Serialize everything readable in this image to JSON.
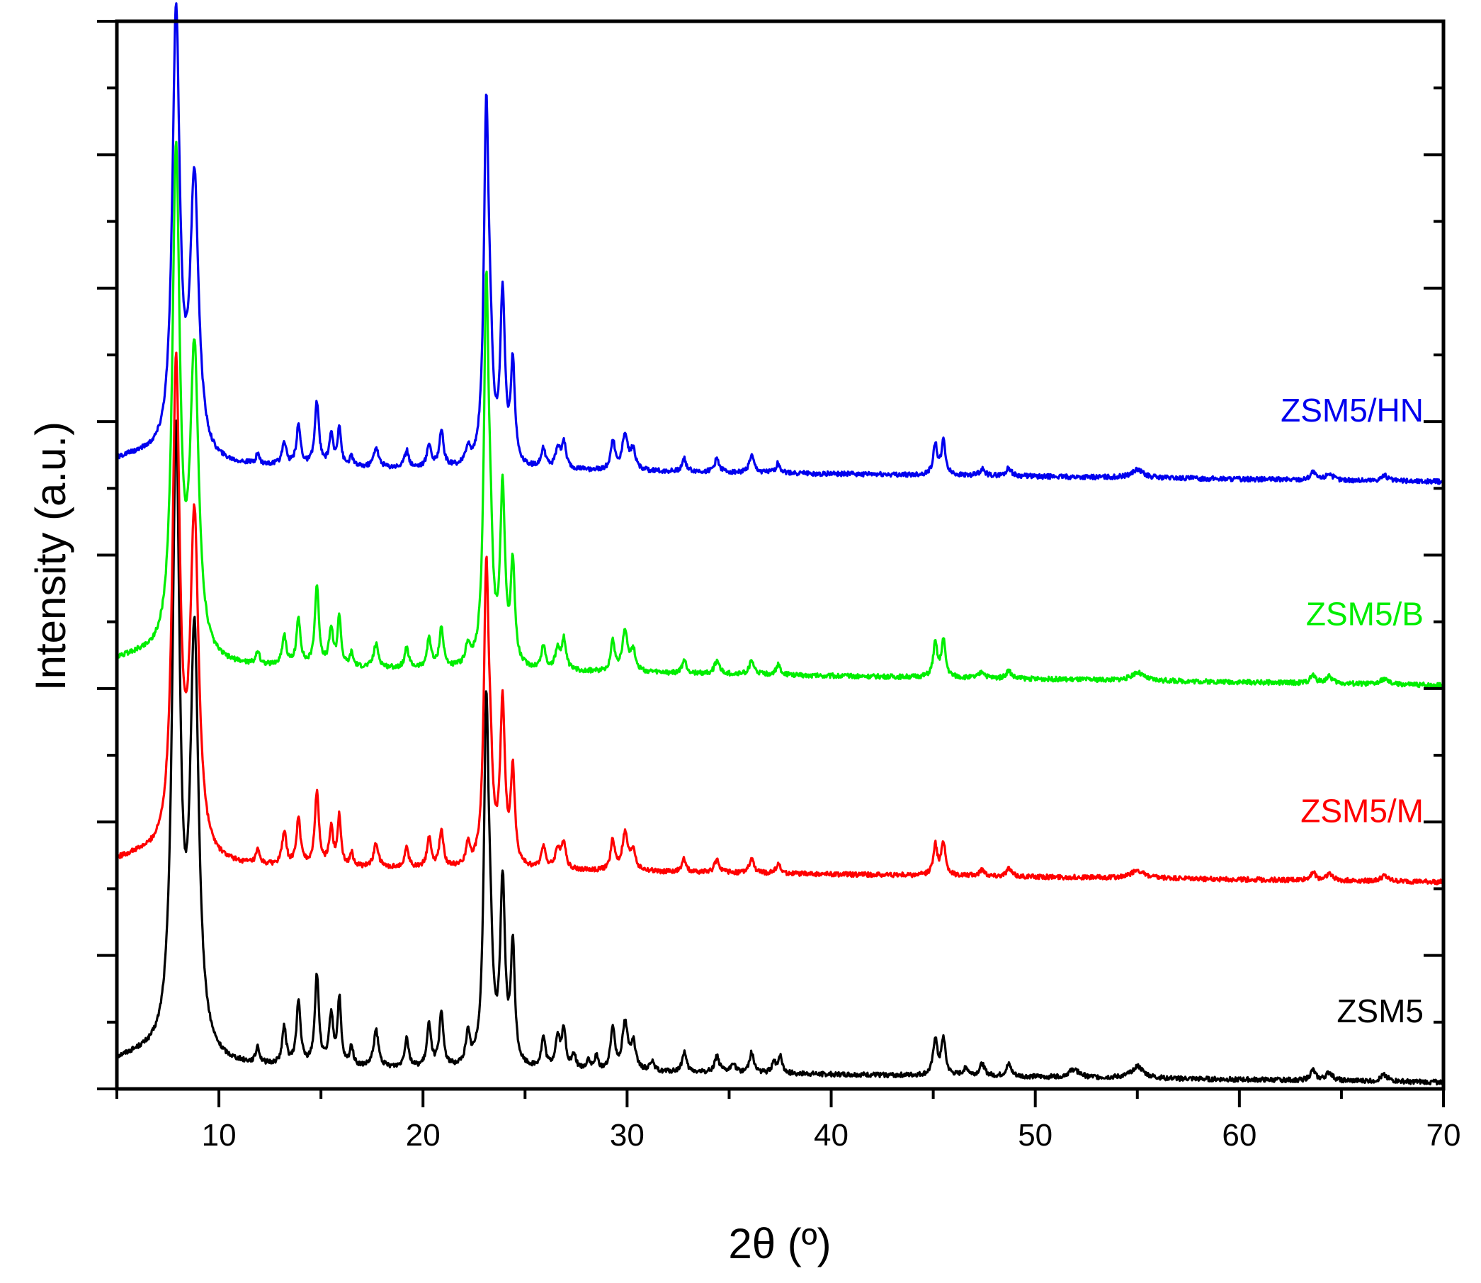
{
  "chart_data": {
    "type": "line",
    "xlabel": "2θ (º)",
    "ylabel": "Intensity (a.u.)",
    "xlim": [
      5,
      70
    ],
    "ylim": [
      0,
      16
    ],
    "xticks": [
      10,
      20,
      30,
      40,
      50,
      60,
      70
    ],
    "y_tick_labels": "none",
    "grid": false,
    "legend": "inline labels at right of each trace",
    "series": [
      {
        "name": "ZSM5",
        "color": "#000000",
        "baseline_start": 0.35,
        "baseline_end": 0.1,
        "peaks": [
          [
            7.9,
            9.2,
            0.22
          ],
          [
            8.8,
            6.2,
            0.25
          ],
          [
            11.9,
            0.25,
            0.1
          ],
          [
            13.2,
            0.55,
            0.12
          ],
          [
            13.9,
            0.95,
            0.12
          ],
          [
            14.8,
            1.35,
            0.12
          ],
          [
            15.5,
            0.75,
            0.12
          ],
          [
            15.9,
            1.0,
            0.1
          ],
          [
            16.5,
            0.3,
            0.1
          ],
          [
            17.7,
            0.55,
            0.14
          ],
          [
            19.2,
            0.45,
            0.12
          ],
          [
            20.3,
            0.65,
            0.12
          ],
          [
            20.9,
            0.8,
            0.12
          ],
          [
            22.2,
            0.45,
            0.12
          ],
          [
            23.1,
            5.2,
            0.14
          ],
          [
            23.3,
            1.2,
            0.14
          ],
          [
            23.9,
            2.7,
            0.14
          ],
          [
            24.4,
            1.75,
            0.12
          ],
          [
            25.9,
            0.45,
            0.12
          ],
          [
            26.6,
            0.45,
            0.14
          ],
          [
            26.9,
            0.55,
            0.12
          ],
          [
            27.4,
            0.2,
            0.12
          ],
          [
            28.1,
            0.15,
            0.1
          ],
          [
            28.5,
            0.2,
            0.1
          ],
          [
            29.3,
            0.65,
            0.12
          ],
          [
            29.9,
            0.7,
            0.16
          ],
          [
            30.3,
            0.4,
            0.14
          ],
          [
            31.2,
            0.15,
            0.12
          ],
          [
            32.8,
            0.3,
            0.12
          ],
          [
            34.4,
            0.25,
            0.14
          ],
          [
            35.2,
            0.15,
            0.12
          ],
          [
            36.1,
            0.3,
            0.14
          ],
          [
            37.2,
            0.15,
            0.12
          ],
          [
            37.5,
            0.25,
            0.12
          ],
          [
            45.1,
            0.55,
            0.12
          ],
          [
            45.5,
            0.55,
            0.12
          ],
          [
            46.6,
            0.12,
            0.15
          ],
          [
            47.4,
            0.18,
            0.15
          ],
          [
            48.7,
            0.18,
            0.15
          ],
          [
            51.9,
            0.12,
            0.3
          ],
          [
            55.0,
            0.18,
            0.35
          ],
          [
            63.6,
            0.15,
            0.15
          ],
          [
            64.4,
            0.12,
            0.2
          ],
          [
            67.1,
            0.1,
            0.2
          ]
        ]
      },
      {
        "name": "ZSM5/M",
        "color": "#ff0000",
        "baseline_start": 3.35,
        "baseline_end": 3.1,
        "peaks": [
          [
            7.9,
            7.3,
            0.22
          ],
          [
            8.8,
            5.0,
            0.25
          ],
          [
            11.9,
            0.2,
            0.1
          ],
          [
            13.2,
            0.5,
            0.12
          ],
          [
            13.9,
            0.7,
            0.12
          ],
          [
            14.8,
            1.1,
            0.12
          ],
          [
            15.5,
            0.55,
            0.12
          ],
          [
            15.9,
            0.75,
            0.1
          ],
          [
            16.5,
            0.2,
            0.1
          ],
          [
            17.7,
            0.35,
            0.14
          ],
          [
            19.2,
            0.3,
            0.12
          ],
          [
            20.3,
            0.45,
            0.12
          ],
          [
            20.9,
            0.55,
            0.12
          ],
          [
            22.2,
            0.3,
            0.12
          ],
          [
            23.1,
            4.3,
            0.14
          ],
          [
            23.3,
            1.0,
            0.14
          ],
          [
            23.9,
            2.4,
            0.14
          ],
          [
            24.4,
            1.4,
            0.12
          ],
          [
            25.9,
            0.35,
            0.12
          ],
          [
            26.6,
            0.3,
            0.14
          ],
          [
            26.9,
            0.4,
            0.12
          ],
          [
            29.3,
            0.45,
            0.12
          ],
          [
            29.9,
            0.55,
            0.16
          ],
          [
            30.3,
            0.3,
            0.14
          ],
          [
            32.8,
            0.2,
            0.12
          ],
          [
            34.4,
            0.2,
            0.14
          ],
          [
            36.1,
            0.2,
            0.14
          ],
          [
            37.4,
            0.15,
            0.12
          ],
          [
            45.1,
            0.45,
            0.12
          ],
          [
            45.5,
            0.5,
            0.12
          ],
          [
            47.4,
            0.1,
            0.15
          ],
          [
            48.7,
            0.12,
            0.15
          ],
          [
            55.0,
            0.12,
            0.35
          ],
          [
            63.6,
            0.12,
            0.15
          ],
          [
            64.4,
            0.1,
            0.2
          ],
          [
            67.1,
            0.08,
            0.2
          ]
        ]
      },
      {
        "name": "ZSM5/B",
        "color": "#00ee00",
        "baseline_start": 6.35,
        "baseline_end": 6.05,
        "peaks": [
          [
            7.9,
            7.5,
            0.22
          ],
          [
            8.8,
            4.5,
            0.25
          ],
          [
            11.9,
            0.2,
            0.1
          ],
          [
            13.2,
            0.45,
            0.12
          ],
          [
            13.9,
            0.7,
            0.12
          ],
          [
            14.8,
            1.2,
            0.12
          ],
          [
            15.5,
            0.55,
            0.12
          ],
          [
            15.9,
            0.75,
            0.1
          ],
          [
            16.5,
            0.2,
            0.1
          ],
          [
            17.7,
            0.35,
            0.14
          ],
          [
            19.2,
            0.3,
            0.12
          ],
          [
            20.3,
            0.45,
            0.12
          ],
          [
            20.9,
            0.6,
            0.12
          ],
          [
            22.2,
            0.3,
            0.12
          ],
          [
            23.1,
            5.5,
            0.14
          ],
          [
            23.3,
            1.2,
            0.14
          ],
          [
            23.9,
            2.6,
            0.14
          ],
          [
            24.4,
            1.5,
            0.12
          ],
          [
            25.9,
            0.35,
            0.12
          ],
          [
            26.6,
            0.3,
            0.14
          ],
          [
            26.9,
            0.45,
            0.12
          ],
          [
            29.3,
            0.45,
            0.12
          ],
          [
            29.9,
            0.6,
            0.16
          ],
          [
            30.3,
            0.3,
            0.14
          ],
          [
            32.8,
            0.2,
            0.12
          ],
          [
            34.4,
            0.2,
            0.14
          ],
          [
            36.1,
            0.2,
            0.14
          ],
          [
            37.4,
            0.15,
            0.12
          ],
          [
            45.1,
            0.5,
            0.12
          ],
          [
            45.5,
            0.55,
            0.12
          ],
          [
            47.4,
            0.1,
            0.15
          ],
          [
            48.7,
            0.12,
            0.15
          ],
          [
            55.0,
            0.12,
            0.35
          ],
          [
            63.6,
            0.12,
            0.15
          ],
          [
            64.4,
            0.1,
            0.2
          ],
          [
            67.1,
            0.08,
            0.2
          ]
        ]
      },
      {
        "name": "ZSM5/HN",
        "color": "#0000ee",
        "baseline_start": 9.35,
        "baseline_end": 9.1,
        "peaks": [
          [
            7.9,
            6.6,
            0.22
          ],
          [
            8.8,
            4.1,
            0.25
          ],
          [
            11.9,
            0.15,
            0.1
          ],
          [
            13.2,
            0.35,
            0.12
          ],
          [
            13.9,
            0.6,
            0.12
          ],
          [
            14.8,
            0.95,
            0.12
          ],
          [
            15.5,
            0.45,
            0.12
          ],
          [
            15.9,
            0.6,
            0.1
          ],
          [
            16.5,
            0.15,
            0.1
          ],
          [
            17.7,
            0.3,
            0.14
          ],
          [
            19.2,
            0.25,
            0.12
          ],
          [
            20.3,
            0.35,
            0.12
          ],
          [
            20.9,
            0.55,
            0.12
          ],
          [
            22.2,
            0.25,
            0.12
          ],
          [
            23.1,
            5.2,
            0.14
          ],
          [
            23.3,
            1.1,
            0.14
          ],
          [
            23.9,
            2.5,
            0.14
          ],
          [
            24.4,
            1.5,
            0.12
          ],
          [
            25.9,
            0.3,
            0.12
          ],
          [
            26.6,
            0.3,
            0.14
          ],
          [
            26.9,
            0.4,
            0.12
          ],
          [
            29.3,
            0.45,
            0.12
          ],
          [
            29.9,
            0.55,
            0.16
          ],
          [
            30.3,
            0.3,
            0.14
          ],
          [
            32.8,
            0.2,
            0.12
          ],
          [
            34.4,
            0.2,
            0.14
          ],
          [
            36.1,
            0.25,
            0.14
          ],
          [
            37.4,
            0.15,
            0.12
          ],
          [
            45.1,
            0.45,
            0.12
          ],
          [
            45.5,
            0.5,
            0.12
          ],
          [
            47.4,
            0.1,
            0.15
          ],
          [
            48.7,
            0.12,
            0.15
          ],
          [
            55.0,
            0.12,
            0.35
          ],
          [
            63.6,
            0.12,
            0.15
          ],
          [
            64.4,
            0.1,
            0.2
          ],
          [
            67.1,
            0.08,
            0.2
          ]
        ]
      }
    ]
  }
}
